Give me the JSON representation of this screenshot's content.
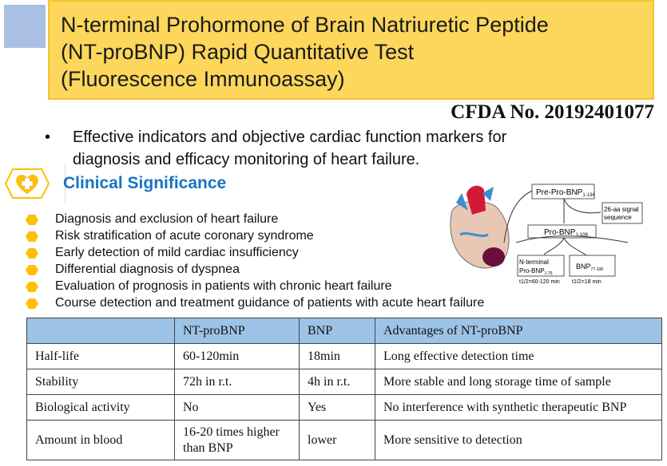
{
  "title": {
    "lines": [
      "N-terminal Prohormone of Brain Natriuretic Peptide",
      "(NT-proBNP) Rapid Quantitative Test",
      "(Fluorescence Immunoassay)"
    ]
  },
  "cfda": "CFDA No. 20192401077",
  "intro": {
    "bullet": "•",
    "text": "Effective indicators and objective cardiac function markers for diagnosis and efficacy monitoring of heart failure."
  },
  "section": {
    "title": "Clinical Significance",
    "icon": "heart-plus-icon"
  },
  "items": [
    "Diagnosis and exclusion of heart failure",
    "Risk stratification of acute coronary syndrome",
    "Early detection of mild cardiac insufficiency",
    "Differential diagnosis of dyspnea",
    "Evaluation of prognosis in patients with chronic heart failure",
    "Course detection and treatment guidance of patients with acute heart failure"
  ],
  "diagram": {
    "pre": "Pre-Pro-BNP",
    "pre_sub": "1-134",
    "signal": "26-aa signal",
    "signal2": "sequence",
    "pro": "Pro-BNP",
    "pro_sub": "1-108",
    "nt1": "N-terminal",
    "nt2": "Pro-BNP",
    "nt_sub": "1-76",
    "bnp": "BNP",
    "bnp_sub": "77-108",
    "nt_half": "t1/2=60-120 min",
    "bnp_half": "t1/2=18 min"
  },
  "table": {
    "header": [
      "",
      "NT-proBNP",
      "BNP",
      "Advantages of NT-proBNP"
    ],
    "rows": [
      [
        "Half-life",
        "60-120min",
        "18min",
        "Long effective detection time"
      ],
      [
        "Stability",
        "72h in r.t.",
        "4h in r.t.",
        "More stable and long storage time of sample"
      ],
      [
        "Biological activity",
        "No",
        "Yes",
        "No interference with synthetic therapeutic BNP"
      ],
      [
        "Amount in blood",
        "16-20 times higher than BNP",
        "lower",
        "More sensitive to detection"
      ]
    ]
  },
  "colors": {
    "title_bg": "#fdd65c",
    "accent_blue": "#1873c4",
    "table_header": "#9dc3e6",
    "bullet": "#ffc000"
  }
}
